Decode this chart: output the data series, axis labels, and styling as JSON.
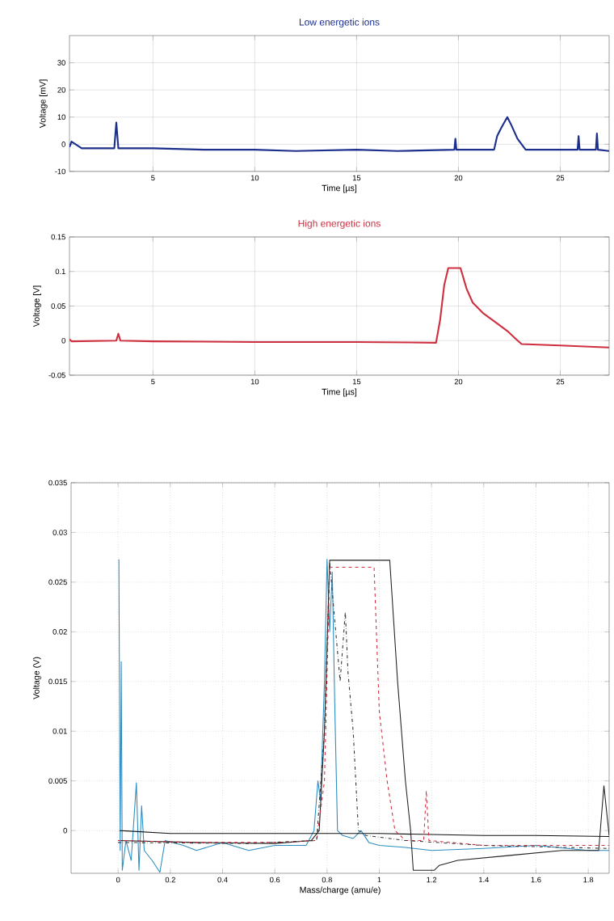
{
  "chart_data": [
    {
      "type": "line",
      "title": "Low energetic ions",
      "xlabel": "Time [µs]",
      "ylabel": "Voltage [mV]",
      "xlim": [
        0.9,
        27.4
      ],
      "ylim": [
        -10,
        40
      ],
      "xticks": [
        5,
        10,
        15,
        20,
        25
      ],
      "yticks": [
        -10,
        0,
        10,
        20,
        30
      ],
      "grid": true,
      "series": [
        {
          "color": "#1c2f8c",
          "x": [
            0.9,
            1.0,
            1.5,
            3.1,
            3.2,
            3.3,
            5,
            7.5,
            10,
            12,
            15,
            17,
            19.8,
            19.85,
            19.9,
            21.75,
            21.9,
            22.1,
            22.4,
            22.6,
            22.9,
            23.3,
            25.85,
            25.9,
            25.95,
            26.75,
            26.8,
            26.85,
            27.4
          ],
          "values": [
            -1,
            1,
            -1.5,
            -1.5,
            8,
            -1.5,
            -1.5,
            -2,
            -2,
            -2.5,
            -2,
            -2.5,
            -2,
            2,
            -2,
            -2,
            3,
            6,
            10,
            7,
            2,
            -2,
            -2,
            3,
            -2,
            -2,
            4,
            -2,
            -2.5
          ]
        }
      ]
    },
    {
      "type": "line",
      "title": "High energetic ions",
      "xlabel": "Time [µs]",
      "ylabel": "Voltage [V]",
      "xlim": [
        0.9,
        27.4
      ],
      "ylim": [
        -0.05,
        0.15
      ],
      "xticks": [
        5,
        10,
        15,
        20,
        25
      ],
      "yticks": [
        -0.05,
        0,
        0.05,
        0.1,
        0.15
      ],
      "grid": true,
      "series": [
        {
          "color": "#cf3040",
          "x": [
            0.9,
            1.0,
            3.2,
            3.3,
            3.4,
            5,
            10,
            15,
            18.9,
            19.1,
            19.3,
            19.5,
            20.1,
            20.4,
            20.7,
            21.2,
            21.8,
            22.4,
            22.8,
            23.1,
            25,
            27.4
          ],
          "values": [
            0.002,
            -0.001,
            0,
            0.01,
            0,
            -0.001,
            -0.002,
            -0.002,
            -0.003,
            0.03,
            0.08,
            0.105,
            0.105,
            0.075,
            0.055,
            0.04,
            0.027,
            0.014,
            0.003,
            -0.005,
            -0.007,
            -0.01
          ]
        }
      ]
    },
    {
      "type": "line",
      "xlabel": "Mass/charge (amu/e)",
      "ylabel": "Voltage (V)",
      "xlim": [
        -0.18,
        1.88
      ],
      "ylim": [
        -0.0043,
        0.035
      ],
      "xticks": [
        0,
        0.2,
        0.4,
        0.6,
        0.8,
        1,
        1.2,
        1.4,
        1.6,
        1.8
      ],
      "yticks": [
        0,
        0.005,
        0.01,
        0.015,
        0.02,
        0.025,
        0.03,
        0.035
      ],
      "grid": true,
      "line_style": "solid",
      "series": [
        {
          "color": "#2a8cc0",
          "x": [
            0.003,
            0.008,
            0.012,
            0.016,
            0.03,
            0.05,
            0.07,
            0.08,
            0.09,
            0.1,
            0.13,
            0.16,
            0.18,
            0.25,
            0.3,
            0.4,
            0.5,
            0.6,
            0.72,
            0.75,
            0.765,
            0.775,
            0.79,
            0.8,
            0.81,
            0.82,
            0.83,
            0.84,
            0.86,
            0.9,
            0.93,
            0.96,
            1.0,
            1.1,
            1.2,
            1.4,
            1.6,
            1.8,
            1.88
          ],
          "values": [
            0.0273,
            -0.002,
            0.017,
            -0.004,
            -0.001,
            -0.003,
            0.0048,
            -0.004,
            0.0025,
            -0.002,
            -0.003,
            -0.0042,
            -0.001,
            -0.0015,
            -0.002,
            -0.0012,
            -0.002,
            -0.0015,
            -0.0015,
            0.0,
            0.005,
            0.003,
            0.015,
            0.0273,
            0.02,
            0.026,
            0.012,
            0.0,
            -0.0005,
            -0.0008,
            0.0,
            -0.0012,
            -0.0015,
            -0.0017,
            -0.002,
            -0.0018,
            -0.0015,
            -0.002,
            -0.002
          ]
        },
        {
          "color": "#111111",
          "x": [
            0.005,
            0.2,
            0.4,
            0.6,
            0.8,
            1.0,
            1.2,
            1.4,
            1.6,
            1.88
          ],
          "values": [
            0.0,
            -0.0003,
            -0.0003,
            -0.0003,
            -0.0003,
            -0.0003,
            -0.0004,
            -0.0005,
            -0.0005,
            -0.0006
          ]
        },
        {
          "color": "#222222",
          "x": [
            0.0,
            0.3,
            0.6,
            0.74,
            0.77,
            0.79,
            0.81,
            1.04,
            1.07,
            1.1,
            1.12,
            1.13,
            1.21,
            1.23,
            1.3,
            1.5,
            1.7,
            1.84,
            1.86,
            1.88
          ],
          "values": [
            -0.001,
            -0.0012,
            -0.0013,
            -0.001,
            0.0,
            0.01,
            0.0272,
            0.0272,
            0.015,
            0.005,
            0.0,
            -0.004,
            -0.004,
            -0.0035,
            -0.003,
            -0.0025,
            -0.002,
            -0.002,
            0.0045,
            -0.0005
          ]
        },
        {
          "color": "#d03040",
          "line_style": "dashed",
          "x": [
            0.0,
            0.3,
            0.6,
            0.76,
            0.79,
            0.81,
            0.98,
            1.0,
            1.03,
            1.06,
            1.1,
            1.17,
            1.18,
            1.19,
            1.4,
            1.6,
            1.88
          ],
          "values": [
            -0.001,
            -0.0012,
            -0.0012,
            -0.001,
            0.005,
            0.0265,
            0.0265,
            0.012,
            0.005,
            0.0,
            -0.001,
            -0.001,
            0.004,
            -0.001,
            -0.0015,
            -0.0015,
            -0.0015
          ]
        },
        {
          "color": "#333333",
          "line_style": "dotted",
          "x": [
            0.0,
            0.5,
            0.76,
            0.79,
            0.81,
            0.85,
            0.87,
            0.88,
            0.9,
            0.92,
            0.95,
            1.1,
            1.4,
            1.88
          ],
          "values": [
            -0.0012,
            -0.0013,
            -0.001,
            0.01,
            0.027,
            0.015,
            0.022,
            0.016,
            0.01,
            0.0,
            -0.0005,
            -0.001,
            -0.0015,
            -0.0018
          ]
        }
      ]
    }
  ]
}
